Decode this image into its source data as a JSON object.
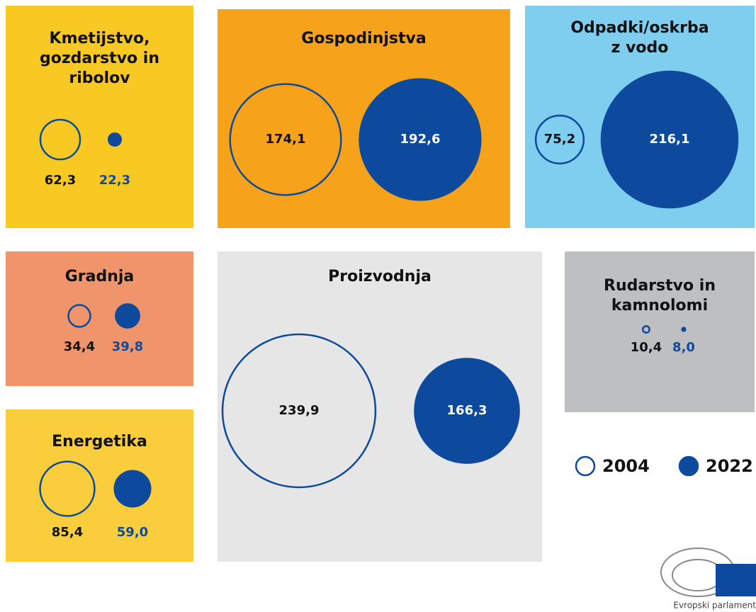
{
  "chart_data": {
    "type": "bubble",
    "series": [
      {
        "name": "2004",
        "color": "#0d4a9e"
      },
      {
        "name": "2022",
        "color": "#0d4a9e"
      }
    ],
    "panels": [
      {
        "title": "Kmetijstvo, gozdarstvo in ribolov",
        "values": [
          62.3,
          22.3
        ],
        "value_labels": [
          "62,3",
          "22,3"
        ]
      },
      {
        "title": "Gospodinjstva",
        "values": [
          174.1,
          192.6
        ],
        "value_labels": [
          "174,1",
          "192,6"
        ]
      },
      {
        "title": "Odpadki/oskrba z vodo",
        "values": [
          75.2,
          216.1
        ],
        "value_labels": [
          "75,2",
          "216,1"
        ]
      },
      {
        "title": "Gradnja",
        "values": [
          34.4,
          39.8
        ],
        "value_labels": [
          "34,4",
          "39,8"
        ]
      },
      {
        "title": "Energetika",
        "values": [
          85.4,
          59.0
        ],
        "value_labels": [
          "85,4",
          "59,0"
        ]
      },
      {
        "title": "Proizvodnja",
        "values": [
          239.9,
          166.3
        ],
        "value_labels": [
          "239,9",
          "166,3"
        ]
      },
      {
        "title": "Rudarstvo in kamnolomi",
        "values": [
          10.4,
          8.0
        ],
        "value_labels": [
          "10,4",
          "8,0"
        ]
      }
    ],
    "footer": "Evropski parlament"
  }
}
